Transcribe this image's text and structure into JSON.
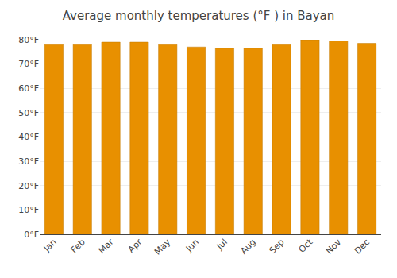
{
  "chart_data": {
    "type": "bar",
    "title": "Average monthly temperatures (°F ) in Bayan",
    "categories": [
      "Jan",
      "Feb",
      "Mar",
      "Apr",
      "May",
      "Jun",
      "Jul",
      "Aug",
      "Sep",
      "Oct",
      "Nov",
      "Dec"
    ],
    "values": [
      78,
      78,
      79,
      79,
      78,
      77,
      76.5,
      76.5,
      78,
      80,
      79.5,
      78.5
    ],
    "color": "#E89000",
    "ylim": [
      0,
      80
    ],
    "yticks": [
      {
        "value": 0,
        "label": "0°F"
      },
      {
        "value": 10,
        "label": "10°F"
      },
      {
        "value": 20,
        "label": "20°F"
      },
      {
        "value": 30,
        "label": "30°F"
      },
      {
        "value": 40,
        "label": "40°F"
      },
      {
        "value": 50,
        "label": "50°F"
      },
      {
        "value": 60,
        "label": "60°F"
      },
      {
        "value": 70,
        "label": "70°F"
      },
      {
        "value": 80,
        "label": "80°F"
      }
    ],
    "grid": true
  }
}
